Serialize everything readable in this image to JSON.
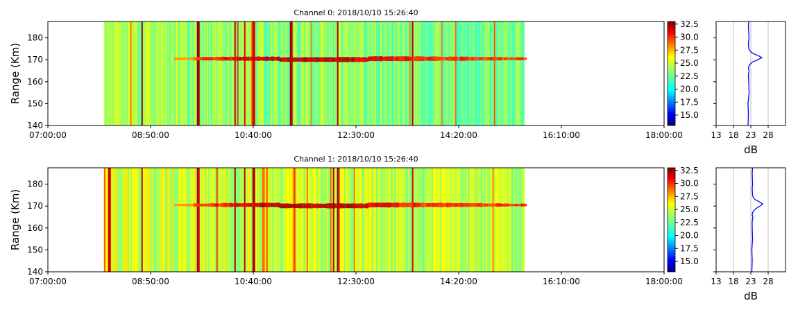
{
  "chart_data": [
    {
      "type": "heatmap",
      "title": "Channel 0: 2018/10/10 15:26:40",
      "ylabel": "Range (Km)",
      "xlabel": "",
      "x_range": [
        "07:00:00",
        "18:00:00"
      ],
      "data_x_range": [
        "08:00:00",
        "15:30:00"
      ],
      "ylim": [
        140,
        187.5
      ],
      "x_ticks": [
        "07:00:00",
        "08:50:00",
        "10:40:00",
        "12:30:00",
        "14:20:00",
        "16:10:00",
        "18:00:00"
      ],
      "y_ticks": [
        140,
        150,
        160,
        170,
        180
      ],
      "layer": {
        "range_km": 170.5,
        "start": "09:15:00",
        "end": "15:30:00"
      },
      "bright_columns": [
        "08:40:00",
        "09:40:00",
        "10:20:00",
        "10:30:00",
        "10:40:00",
        "11:20:00",
        "12:10:00",
        "13:30:00"
      ],
      "colorbar": {
        "min": 13,
        "max": 33,
        "ticks": [
          15.0,
          17.5,
          20.0,
          22.5,
          25.0,
          27.5,
          30.0,
          32.5
        ],
        "colormap": "jet"
      },
      "profile": {
        "xlabel": "dB",
        "xlim": [
          13,
          33
        ],
        "x_ticks": [
          13,
          18,
          23,
          28
        ],
        "grid": true,
        "color": "#0000ff",
        "ranges_km": [
          140,
          145,
          150,
          155,
          160,
          163,
          165,
          166,
          167,
          168,
          169,
          170,
          171,
          172,
          173,
          174,
          175,
          178,
          180,
          185,
          187.5
        ],
        "db": [
          22.2,
          22.3,
          22.2,
          22.5,
          22.4,
          22.3,
          22.5,
          22.3,
          22.4,
          22.8,
          23.5,
          25.0,
          26.2,
          25.0,
          23.5,
          22.8,
          22.4,
          22.3,
          22.5,
          22.3,
          22.4
        ]
      }
    },
    {
      "type": "heatmap",
      "title": "Channel 1: 2018/10/10 15:26:40",
      "ylabel": "Range (Km)",
      "xlabel": "",
      "x_range": [
        "07:00:00",
        "18:00:00"
      ],
      "data_x_range": [
        "08:00:00",
        "15:30:00"
      ],
      "ylim": [
        140,
        187.5
      ],
      "x_ticks": [
        "07:00:00",
        "08:50:00",
        "10:40:00",
        "12:30:00",
        "14:20:00",
        "16:10:00",
        "18:00:00"
      ],
      "y_ticks": [
        140,
        150,
        160,
        170,
        180
      ],
      "layer": {
        "range_km": 170.5,
        "start": "09:15:00",
        "end": "15:30:00"
      },
      "bright_columns": [
        "08:05:00",
        "08:40:00",
        "09:40:00",
        "10:20:00",
        "10:30:00",
        "10:40:00",
        "12:05:00",
        "12:10:00",
        "13:30:00"
      ],
      "colorbar": {
        "min": 13,
        "max": 33,
        "ticks": [
          15.0,
          17.5,
          20.0,
          22.5,
          25.0,
          27.5,
          30.0,
          32.5
        ],
        "colormap": "jet"
      },
      "profile": {
        "xlabel": "dB",
        "xlim": [
          13,
          33
        ],
        "x_ticks": [
          13,
          18,
          23,
          28
        ],
        "grid": true,
        "color": "#0000ff",
        "ranges_km": [
          140,
          145,
          150,
          155,
          160,
          163,
          165,
          166,
          167,
          168,
          169,
          170,
          171,
          172,
          173,
          174,
          175,
          178,
          180,
          185,
          187.5
        ],
        "db": [
          23.3,
          23.4,
          23.3,
          23.5,
          23.4,
          23.4,
          23.6,
          23.4,
          23.5,
          23.9,
          24.6,
          25.6,
          26.4,
          25.4,
          24.2,
          23.7,
          23.5,
          23.4,
          23.5,
          23.4,
          23.5
        ]
      }
    }
  ]
}
